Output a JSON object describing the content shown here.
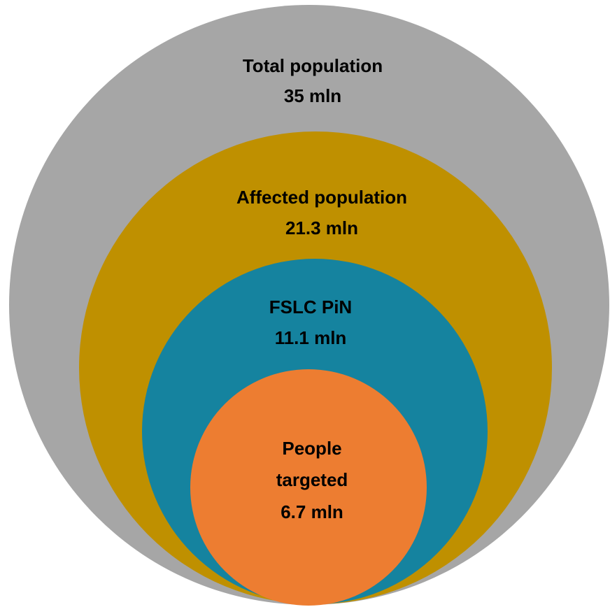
{
  "nodes": [
    {
      "lines": [
        "Total population",
        "35 mln"
      ]
    },
    {
      "lines": [
        "Affected population",
        "21.3 mln"
      ]
    },
    {
      "lines": [
        "FSLC PiN",
        "11.1 mln"
      ]
    },
    {
      "lines": [
        "People",
        "targeted",
        "6.7 mln"
      ]
    }
  ]
}
